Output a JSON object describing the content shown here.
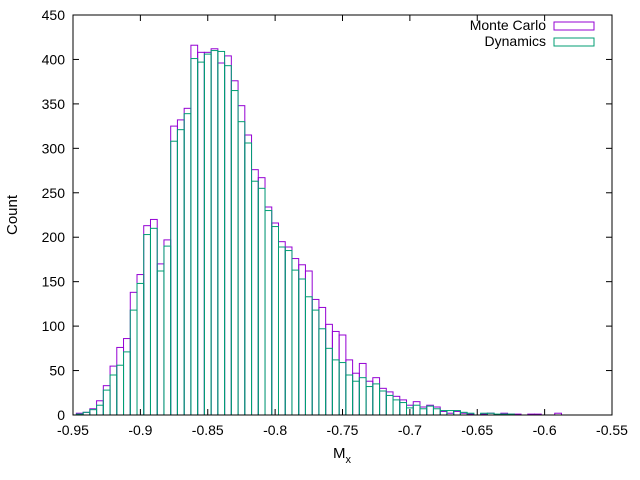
{
  "chart_data": {
    "type": "bar",
    "style": "histogram-steps",
    "xlabel_main": "M",
    "xlabel_sub": "x",
    "ylabel": "Count",
    "xlim": [
      -0.95,
      -0.55
    ],
    "ylim": [
      0,
      450
    ],
    "x_ticks": [
      -0.95,
      -0.9,
      -0.85,
      -0.8,
      -0.75,
      -0.7,
      -0.65,
      -0.6,
      -0.55
    ],
    "x_tick_labels": [
      "-0.95",
      "-0.9",
      "-0.85",
      "-0.8",
      "-0.75",
      "-0.7",
      "-0.65",
      "-0.6",
      "-0.55"
    ],
    "y_ticks": [
      0,
      50,
      100,
      150,
      200,
      250,
      300,
      350,
      400,
      450
    ],
    "y_tick_labels": [
      "0",
      "50",
      "100",
      "150",
      "200",
      "250",
      "300",
      "350",
      "400",
      "450"
    ],
    "grid": false,
    "legend_position": "top-right",
    "bin_width": 0.005,
    "bin_start": -0.9475,
    "series": [
      {
        "name": "Monte Carlo",
        "color": "#9400d3",
        "values": [
          2,
          3,
          7,
          16,
          33,
          55,
          76,
          86,
          138,
          158,
          213,
          220,
          170,
          197,
          325,
          332,
          345,
          416,
          408,
          408,
          412,
          396,
          404,
          376,
          348,
          315,
          276,
          267,
          234,
          216,
          195,
          189,
          176,
          169,
          162,
          130,
          121,
          102,
          94,
          90,
          62,
          47,
          58,
          38,
          42,
          30,
          26,
          21,
          17,
          11,
          15,
          9,
          11,
          9,
          4,
          2,
          4,
          2,
          1,
          0,
          1,
          2,
          0,
          2,
          1,
          1,
          0,
          1,
          1,
          0,
          0,
          2
        ]
      },
      {
        "name": "Dynamics",
        "color": "#009e73",
        "values": [
          1,
          3,
          6,
          11,
          28,
          45,
          56,
          71,
          118,
          148,
          203,
          210,
          162,
          190,
          308,
          321,
          339,
          401,
          397,
          406,
          410,
          409,
          393,
          365,
          330,
          306,
          263,
          255,
          230,
          212,
          189,
          185,
          163,
          153,
          133,
          118,
          97,
          75,
          62,
          59,
          45,
          38,
          42,
          32,
          35,
          27,
          22,
          17,
          14,
          8,
          11,
          7,
          10,
          7,
          5,
          5,
          5,
          3,
          2,
          0,
          2,
          2,
          1,
          1,
          1,
          0,
          0,
          0,
          0,
          0,
          0,
          0
        ]
      }
    ]
  }
}
